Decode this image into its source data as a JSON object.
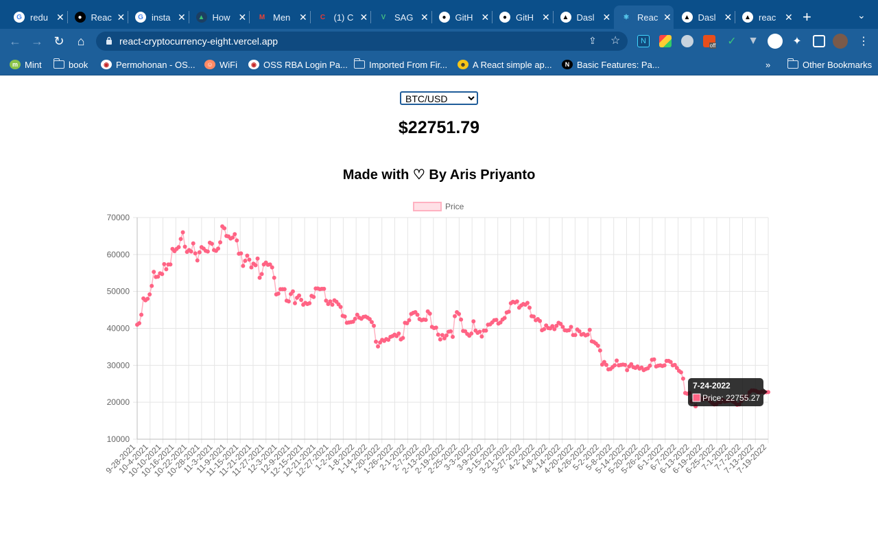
{
  "browser": {
    "tabs": [
      {
        "title": "redu",
        "icon": "google-icon"
      },
      {
        "title": "Reac",
        "icon": "medium-icon"
      },
      {
        "title": "insta",
        "icon": "google-icon"
      },
      {
        "title": "How",
        "icon": "academy-icon"
      },
      {
        "title": "Men",
        "icon": "gmail-icon"
      },
      {
        "title": "(1) C",
        "icon": "c-icon"
      },
      {
        "title": "SAG",
        "icon": "vue-icon"
      },
      {
        "title": "GitH",
        "icon": "github-icon"
      },
      {
        "title": "GitH",
        "icon": "github-icon"
      },
      {
        "title": "Dasl",
        "icon": "vercel-icon"
      },
      {
        "title": "Reac",
        "icon": "react-icon",
        "active": true
      },
      {
        "title": "Dasl",
        "icon": "vercel-icon"
      },
      {
        "title": "reac",
        "icon": "vercel-icon"
      }
    ],
    "new_tab": "+",
    "url": "react-cryptocurrency-eight.vercel.app",
    "bookmarks": [
      {
        "label": "Mint",
        "icon": "mint-icon"
      },
      {
        "label": "book",
        "icon": "folder-icon"
      },
      {
        "label": "Permohonan - OS...",
        "icon": "oss-icon"
      },
      {
        "label": "WiFi",
        "icon": "wifi-icon"
      },
      {
        "label": "OSS RBA Login Pa...",
        "icon": "oss-icon"
      },
      {
        "label": "Imported From Fir...",
        "icon": "folder-icon"
      },
      {
        "label": "A React simple ap...",
        "icon": "avatar-icon"
      },
      {
        "label": "Basic Features: Pa...",
        "icon": "nextjs-icon"
      }
    ],
    "bookmarks_overflow": "»",
    "other_bookmarks": "Other Bookmarks",
    "extension_badge": "off"
  },
  "page": {
    "pair_select": {
      "value": "BTC/USD",
      "options": [
        "BTC/USD"
      ]
    },
    "price": "$22751.79",
    "credit": "Made with ♡ By Aris Priyanto",
    "tooltip": {
      "date": "7-24-2022",
      "label": "Price: 22755.27"
    }
  },
  "chart_data": {
    "type": "line",
    "legend": [
      "Price"
    ],
    "legend_position": "top",
    "point_color": "#ff6384",
    "line_color": "#ffb1c1",
    "grid": true,
    "ylim": [
      10000,
      70000
    ],
    "yticks": [
      10000,
      20000,
      30000,
      40000,
      50000,
      60000,
      70000
    ],
    "xtick_labels": [
      "9-28-2021",
      "10-4-2021",
      "10-10-2021",
      "10-16-2021",
      "10-22-2021",
      "10-28-2021",
      "11-3-2021",
      "11-9-2021",
      "11-15-2021",
      "11-21-2021",
      "11-27-2021",
      "12-3-2021",
      "12-9-2021",
      "12-15-2021",
      "12-21-2021",
      "12-27-2021",
      "1-2-2022",
      "1-8-2022",
      "1-14-2022",
      "1-20-2022",
      "1-26-2022",
      "2-1-2022",
      "2-7-2022",
      "2-13-2022",
      "2-19-2022",
      "2-25-2022",
      "3-3-2022",
      "3-9-2022",
      "3-15-2022",
      "3-21-2022",
      "3-27-2022",
      "4-2-2022",
      "4-8-2022",
      "4-14-2022",
      "4-20-2022",
      "4-26-2022",
      "5-2-2022",
      "5-8-2022",
      "5-14-2022",
      "5-20-2022",
      "5-26-2022",
      "6-1-2022",
      "6-7-2022",
      "6-13-2022",
      "6-19-2022",
      "6-25-2022",
      "7-1-2022",
      "7-7-2022",
      "7-13-2022",
      "7-19-2022"
    ],
    "series": [
      {
        "name": "Price",
        "values": [
          41000,
          41400,
          43700,
          48100,
          47600,
          48000,
          49200,
          51500,
          55300,
          53900,
          54000,
          54900,
          54700,
          57400,
          56000,
          57300,
          57300,
          61500,
          60900,
          61500,
          62000,
          64200,
          66000,
          62100,
          60700,
          61200,
          60800,
          63000,
          60300,
          58400,
          60600,
          62000,
          61600,
          61000,
          60800,
          63200,
          62900,
          61200,
          61000,
          61600,
          63300,
          67600,
          67100,
          65000,
          64900,
          64300,
          64600,
          65500,
          63800,
          60200,
          60300,
          56900,
          58300,
          59700,
          58600,
          56500,
          57500,
          57100,
          58900,
          53700,
          54700,
          57300,
          57800,
          57200,
          57300,
          56500,
          53700,
          49200,
          49400,
          50600,
          50600,
          50600,
          47500,
          47300,
          49300,
          50000,
          46800,
          48300,
          48900,
          47700,
          46400,
          46900,
          46600,
          46800,
          48800,
          48500,
          50800,
          50800,
          50600,
          50700,
          50700,
          47500,
          46600,
          47300,
          46400,
          47600,
          47200,
          46500,
          45800,
          43400,
          43200,
          41500,
          41600,
          41700,
          41800,
          42600,
          43700,
          42900,
          42600,
          43100,
          43200,
          42900,
          42500,
          41700,
          40700,
          36400,
          35100,
          36200,
          36900,
          36600,
          37100,
          36900,
          37700,
          37900,
          38300,
          37900,
          38600,
          37000,
          37400,
          41500,
          41400,
          42200,
          43900,
          44200,
          44400,
          43700,
          42500,
          42200,
          42400,
          42300,
          44600,
          44000,
          40400,
          40100,
          40200,
          38300,
          37000,
          38200,
          37300,
          38100,
          39100,
          39200,
          37700,
          43300,
          44400,
          43900,
          42400,
          39300,
          39200,
          38500,
          38000,
          38600,
          41900,
          39400,
          38800,
          39100,
          37800,
          39400,
          39400,
          41000,
          41100,
          41600,
          42200,
          42300,
          41300,
          41600,
          42400,
          42800,
          44300,
          44500,
          46800,
          47200,
          47000,
          47300,
          45600,
          46200,
          46600,
          46400,
          46900,
          45600,
          43300,
          43200,
          42200,
          42500,
          42000,
          39500,
          39800,
          40800,
          40100,
          40000,
          40600,
          39800,
          40700,
          41500,
          41200,
          40400,
          39500,
          39400,
          39500,
          40400,
          38200,
          38200,
          39700,
          39200,
          38300,
          38500,
          38100,
          38300,
          39600,
          36500,
          36300,
          35900,
          35300,
          34000,
          30200,
          30900,
          30100,
          28900,
          29000,
          29500,
          30000,
          31300,
          30000,
          30100,
          30200,
          30100,
          28700,
          29700,
          30300,
          29500,
          29300,
          29700,
          29100,
          29400,
          28700,
          29000,
          29200,
          29900,
          31500,
          31600,
          29700,
          29900,
          30000,
          29800,
          30000,
          31200,
          31200,
          30900,
          30000,
          30100,
          29300,
          28500,
          28100,
          26400,
          22500,
          22300,
          22500,
          20200,
          20600,
          18900,
          20700,
          21300,
          20700,
          21100,
          20900,
          21100,
          20300,
          19800,
          19400,
          19500,
          20100,
          20000,
          20600,
          20200,
          20300,
          20400,
          20500,
          20200,
          19900,
          19300,
          19400,
          20300,
          21600,
          20900,
          21700,
          22700,
          23200,
          23200,
          23100,
          22800,
          22700,
          22900,
          22755,
          22700,
          22750
        ]
      }
    ]
  }
}
